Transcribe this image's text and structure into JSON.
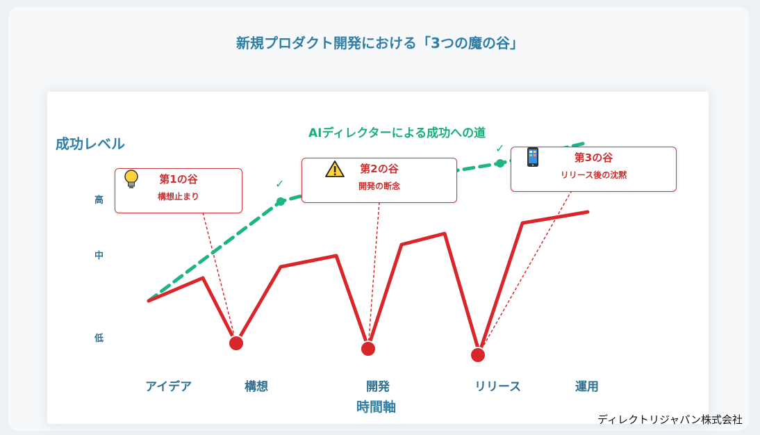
{
  "title": "新規プロダクト開発における「3つの魔の谷」",
  "axes": {
    "y_label": "成功レベル",
    "y_ticks": [
      "高",
      "中",
      "低"
    ],
    "x_label": "時間軸",
    "x_ticks": [
      "アイデア",
      "構想",
      "開発",
      "リリース",
      "運用"
    ]
  },
  "ai_path": {
    "label": "AIディレクターによる成功への道",
    "check": "✓",
    "color": "#1db584"
  },
  "valleys": [
    {
      "title": "第1の谷",
      "subtitle": "構想止まり",
      "icon": "lightbulb-icon"
    },
    {
      "title": "第2の谷",
      "subtitle": "開発の断念",
      "icon": "warning-icon"
    },
    {
      "title": "第3の谷",
      "subtitle": "リリース後の沈黙",
      "icon": "smartphone-icon"
    }
  ],
  "colors": {
    "valley_line": "#d8262b",
    "title": "#2f7ea6",
    "axis_text": "#2f6f90"
  },
  "company": "ディレクトリジャパン株式会社"
}
